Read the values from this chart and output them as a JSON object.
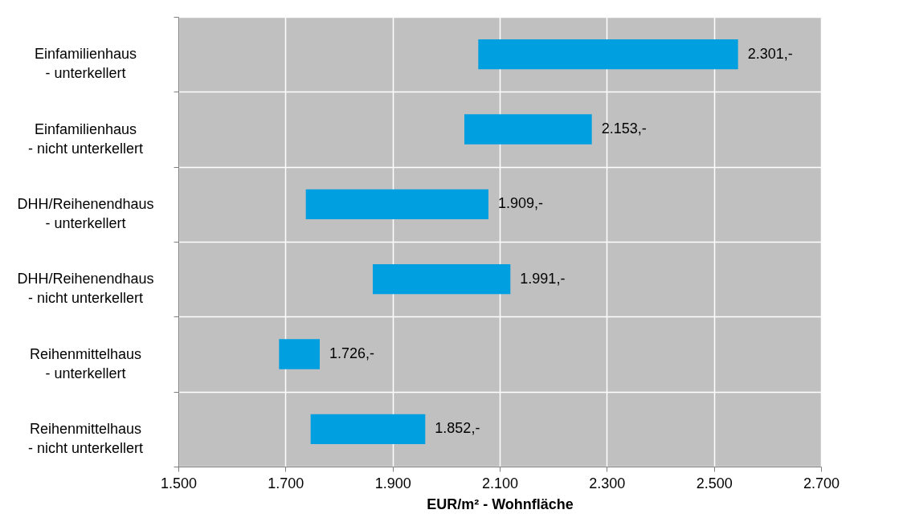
{
  "chart_data": {
    "type": "bar",
    "orientation": "horizontal",
    "xlabel": "EUR/m² - Wohnfläche",
    "categories": [
      "Einfamilienhaus\n- unterkellert",
      "Einfamilienhaus\n- nicht unterkellert",
      "DHH/Reihenendhaus\n- unterkellert",
      "DHH/Reihenendhaus\n- nicht unterkellert",
      "Reihenmittelhaus\n- unterkellert",
      "Reihenmittelhaus\n- nicht unterkellert"
    ],
    "base": [
      2060,
      2034,
      1738,
      1863,
      1688,
      1747
    ],
    "values": [
      485,
      238,
      341,
      257,
      76,
      214
    ],
    "annotations": [
      {
        "text": "2.301,-",
        "x": 2545,
        "y": "Einfamilienhaus\n- unterkellert"
      },
      {
        "text": "2.153,-",
        "x": 2272,
        "y": "Einfamilienhaus\n- nicht unterkellert"
      },
      {
        "text": "1.909,-",
        "x": 2079,
        "y": "DHH/Reihenendhaus\n- unterkellert"
      },
      {
        "text": "1.991,-",
        "x": 2120,
        "y": "DHH/Reihenendhaus\n- nicht unterkellert"
      },
      {
        "text": "1.726,-",
        "x": 1764,
        "y": "Reihenmittelhaus\n- unterkellert"
      },
      {
        "text": "1.852,-",
        "x": 1961,
        "y": "Reihenmittelhaus\n- nicht unterkellert"
      }
    ],
    "color": "#009fe0",
    "xlim": [
      1500,
      2700
    ],
    "xticks": [
      {
        "value": 1500,
        "label": "1.500"
      },
      {
        "value": 1700,
        "label": "1.700"
      },
      {
        "value": 1900,
        "label": "1.900"
      },
      {
        "value": 2100,
        "label": "2.100"
      },
      {
        "value": 2300,
        "label": "2.300"
      },
      {
        "value": 2500,
        "label": "2.500"
      },
      {
        "value": 2700,
        "label": "2.700"
      }
    ],
    "grid": true
  }
}
